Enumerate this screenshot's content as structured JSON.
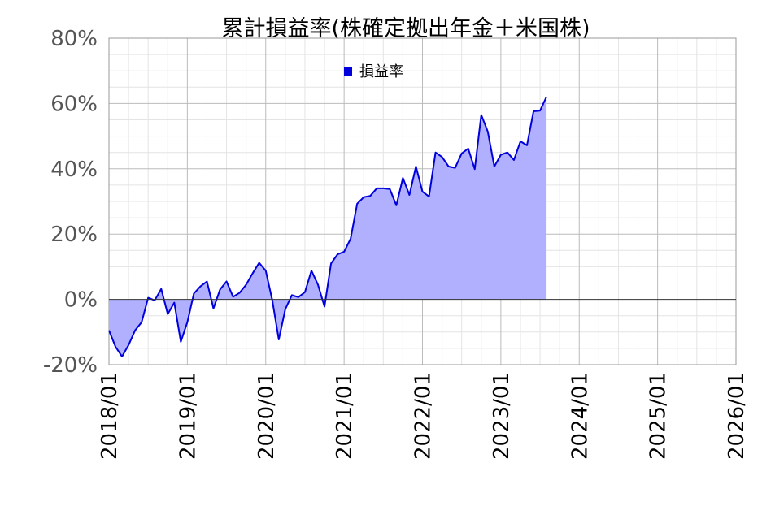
{
  "chart_data": {
    "type": "area",
    "title": "累計損益率(株確定拠出年金＋米国株)",
    "xlabel": "",
    "ylabel": "",
    "ylim": [
      -20,
      80
    ],
    "yticks": [
      -20,
      0,
      20,
      40,
      60,
      80
    ],
    "ytick_labels": [
      "-20%",
      "0%",
      "20%",
      "40%",
      "60%",
      "80%"
    ],
    "xlim": [
      "2018-01",
      "2026-01"
    ],
    "xtick_labels": [
      "2018/01",
      "2019/01",
      "2020/01",
      "2021/01",
      "2022/01",
      "2023/01",
      "2024/01",
      "2025/01",
      "2026/01"
    ],
    "grid": true,
    "legend_position": "top-center",
    "series": [
      {
        "name": "損益率",
        "line_color": "#0000dd",
        "fill_color": "#b0b0ff",
        "x": [
          "2018-01",
          "2018-02",
          "2018-03",
          "2018-04",
          "2018-05",
          "2018-06",
          "2018-07",
          "2018-08",
          "2018-09",
          "2018-10",
          "2018-11",
          "2018-12",
          "2019-01",
          "2019-02",
          "2019-03",
          "2019-04",
          "2019-05",
          "2019-06",
          "2019-07",
          "2019-08",
          "2019-09",
          "2019-10",
          "2019-11",
          "2019-12",
          "2020-01",
          "2020-02",
          "2020-03",
          "2020-04",
          "2020-05",
          "2020-06",
          "2020-07",
          "2020-08",
          "2020-09",
          "2020-10",
          "2020-11",
          "2020-12",
          "2021-01",
          "2021-02",
          "2021-03",
          "2021-04",
          "2021-05",
          "2021-06",
          "2021-07",
          "2021-08",
          "2021-09",
          "2021-10",
          "2021-11",
          "2021-12",
          "2022-01",
          "2022-02",
          "2022-03",
          "2022-04",
          "2022-05",
          "2022-06",
          "2022-07",
          "2022-08",
          "2022-09",
          "2022-10",
          "2022-11",
          "2022-12",
          "2023-01",
          "2023-02",
          "2023-03",
          "2023-04",
          "2023-05",
          "2023-06",
          "2023-07",
          "2023-08"
        ],
        "values": [
          -9.5,
          -14.5,
          -17.5,
          -14,
          -9.5,
          -7,
          0.5,
          -0.3,
          3.2,
          -4.5,
          -1,
          -13,
          -7,
          1.8,
          4,
          5.5,
          -2.8,
          3,
          5.5,
          0.8,
          2,
          4.5,
          8,
          11.2,
          8.8,
          -0.2,
          -12.3,
          -3,
          1.3,
          0.7,
          2.2,
          8.8,
          4.5,
          -2.2,
          11,
          13.8,
          14.6,
          18.6,
          29.3,
          31.3,
          31.7,
          34,
          34,
          33.8,
          28.8,
          37.2,
          32,
          40.7,
          33,
          31.5,
          45,
          43.6,
          40.7,
          40.3,
          44.7,
          46.2,
          39.9,
          56.5,
          51.4,
          40.7,
          44.3,
          45,
          42.7,
          48.4,
          47.2,
          57.6,
          57.8,
          62.1
        ]
      }
    ]
  }
}
